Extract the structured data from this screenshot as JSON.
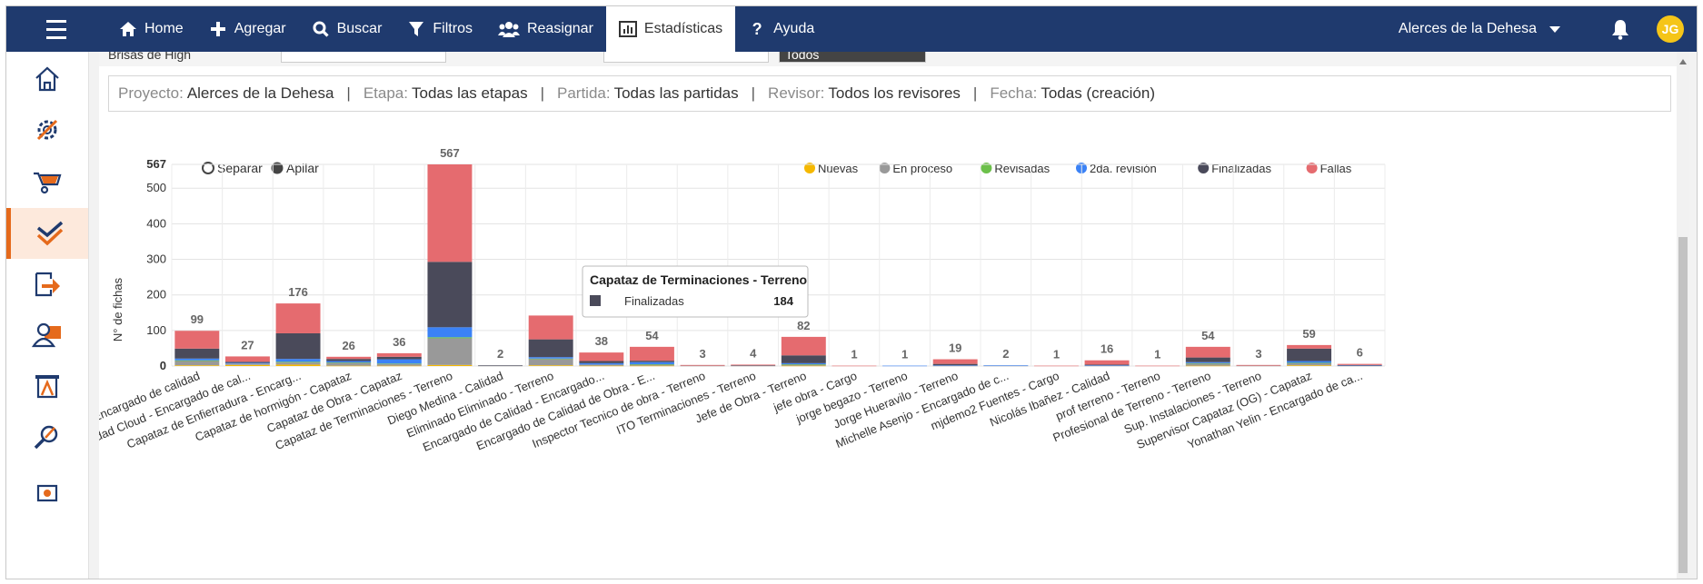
{
  "nav": {
    "items": [
      {
        "label": "Home",
        "icon": "home-icon"
      },
      {
        "label": "Agregar",
        "icon": "plus-icon"
      },
      {
        "label": "Buscar",
        "icon": "search-icon"
      },
      {
        "label": "Filtros",
        "icon": "filter-icon"
      },
      {
        "label": "Reasignar",
        "icon": "users-icon"
      },
      {
        "label": "Estadísticas",
        "icon": "chart-icon"
      },
      {
        "label": "Ayuda",
        "icon": "question-icon"
      }
    ],
    "active_index": 5,
    "project": "Alerces de la Dehesa",
    "avatar": "JG"
  },
  "filters_partial": {
    "first": "Brisas de High",
    "dark": "Todos"
  },
  "summary": {
    "proyecto_label": "Proyecto:",
    "proyecto": "Alerces de la Dehesa",
    "etapa_label": "Etapa:",
    "etapa": "Todas las etapas",
    "partida_label": "Partida:",
    "partida": "Todas las partidas",
    "revisor_label": "Revisor:",
    "revisor": "Todos los revisores",
    "fecha_label": "Fecha:",
    "fecha": "Todas (creación)"
  },
  "mode": {
    "separar": "Separar",
    "apilar": "Apilar",
    "selected": "apilar"
  },
  "colors": {
    "nuevas": "#f5b800",
    "en_proceso": "#999999",
    "revisadas": "#6cc04a",
    "segunda_revision": "#3b82f6",
    "finalizadas": "#4a4a5a",
    "fallas": "#e56b6f",
    "accent": "#e56a1c",
    "topbar": "#1f3a6e"
  },
  "chart_data": {
    "type": "bar",
    "stacked": true,
    "ylabel": "N° de fichas",
    "ylim": [
      0,
      567
    ],
    "yticks": [
      0,
      100,
      200,
      300,
      400,
      500,
      567
    ],
    "grid": true,
    "legend_position": "top-right",
    "categories": [
      "Encargado de calidad",
      "alidad Cloud - Encargado de cal...",
      "Capataz de Enfierradura - Encarg...",
      "Capataz de hormigón - Capataz",
      "Capataz de Obra - Capataz",
      "Capataz de Terminaciones - Terreno",
      "Diego Medina - Calidad",
      "Eliminado Eliminado - Terreno",
      "Encargado de Calidad - Encargado...",
      "Encargado de Calidad de Obra - E...",
      "Inspector Tecnico de obra - Terreno",
      "ITO Terminaciones - Terreno",
      "Jefe de Obra - Terreno",
      "jefe obra - Cargo",
      "jorge begazo - Terreno",
      "Jorge Hueravilo - Terreno",
      "Michelle Asenjo - Encargado de c...",
      "mjdemo2 Fuentes - Cargo",
      "Nicolás Ibañez - Calidad",
      "prof terreno - Terreno",
      "Profesional de Terreno - Terreno",
      "Sup. Instalaciones - Terreno",
      "Supervisor Capataz (OG) - Capataz",
      "Yonathan Yelin - Encargado de ca..."
    ],
    "totals": [
      99,
      27,
      176,
      26,
      36,
      567,
      2,
      142,
      38,
      54,
      3,
      4,
      82,
      1,
      1,
      19,
      2,
      1,
      16,
      1,
      54,
      3,
      59,
      6
    ],
    "total_labels_visible": [
      true,
      true,
      true,
      true,
      true,
      true,
      true,
      false,
      true,
      true,
      true,
      true,
      true,
      true,
      true,
      true,
      true,
      true,
      true,
      true,
      true,
      true,
      true,
      true
    ],
    "series": [
      {
        "name": "Nuevas",
        "values": [
          2,
          3,
          4,
          1,
          1,
          3,
          0,
          2,
          1,
          1,
          0,
          0,
          1,
          0,
          0,
          0,
          0,
          0,
          0,
          0,
          1,
          0,
          2,
          0
        ]
      },
      {
        "name": "En proceso",
        "values": [
          12,
          4,
          6,
          8,
          5,
          75,
          1,
          18,
          3,
          3,
          1,
          1,
          3,
          0,
          0,
          1,
          1,
          0,
          1,
          0,
          6,
          1,
          6,
          1
        ]
      },
      {
        "name": "Revisadas",
        "values": [
          2,
          0,
          2,
          1,
          1,
          3,
          0,
          1,
          0,
          1,
          0,
          0,
          1,
          0,
          0,
          0,
          0,
          0,
          0,
          0,
          1,
          0,
          1,
          0
        ]
      },
      {
        "name": "2da. revisión",
        "values": [
          5,
          2,
          8,
          4,
          12,
          28,
          0,
          4,
          4,
          6,
          0,
          0,
          3,
          0,
          1,
          1,
          1,
          0,
          1,
          0,
          3,
          0,
          5,
          1
        ]
      },
      {
        "name": "Finalizadas",
        "values": [
          28,
          3,
          72,
          6,
          7,
          184,
          1,
          50,
          6,
          4,
          0,
          1,
          22,
          0,
          0,
          4,
          0,
          0,
          2,
          0,
          13,
          0,
          35,
          1
        ]
      },
      {
        "name": "Fallas",
        "values": [
          50,
          15,
          84,
          6,
          10,
          274,
          0,
          67,
          24,
          39,
          2,
          2,
          52,
          1,
          0,
          13,
          0,
          1,
          12,
          1,
          30,
          2,
          10,
          3
        ]
      }
    ],
    "tooltip": {
      "category_index": 5,
      "title": "Capataz de Terminaciones - Terreno",
      "series": "Finalizadas",
      "value": "184"
    }
  }
}
